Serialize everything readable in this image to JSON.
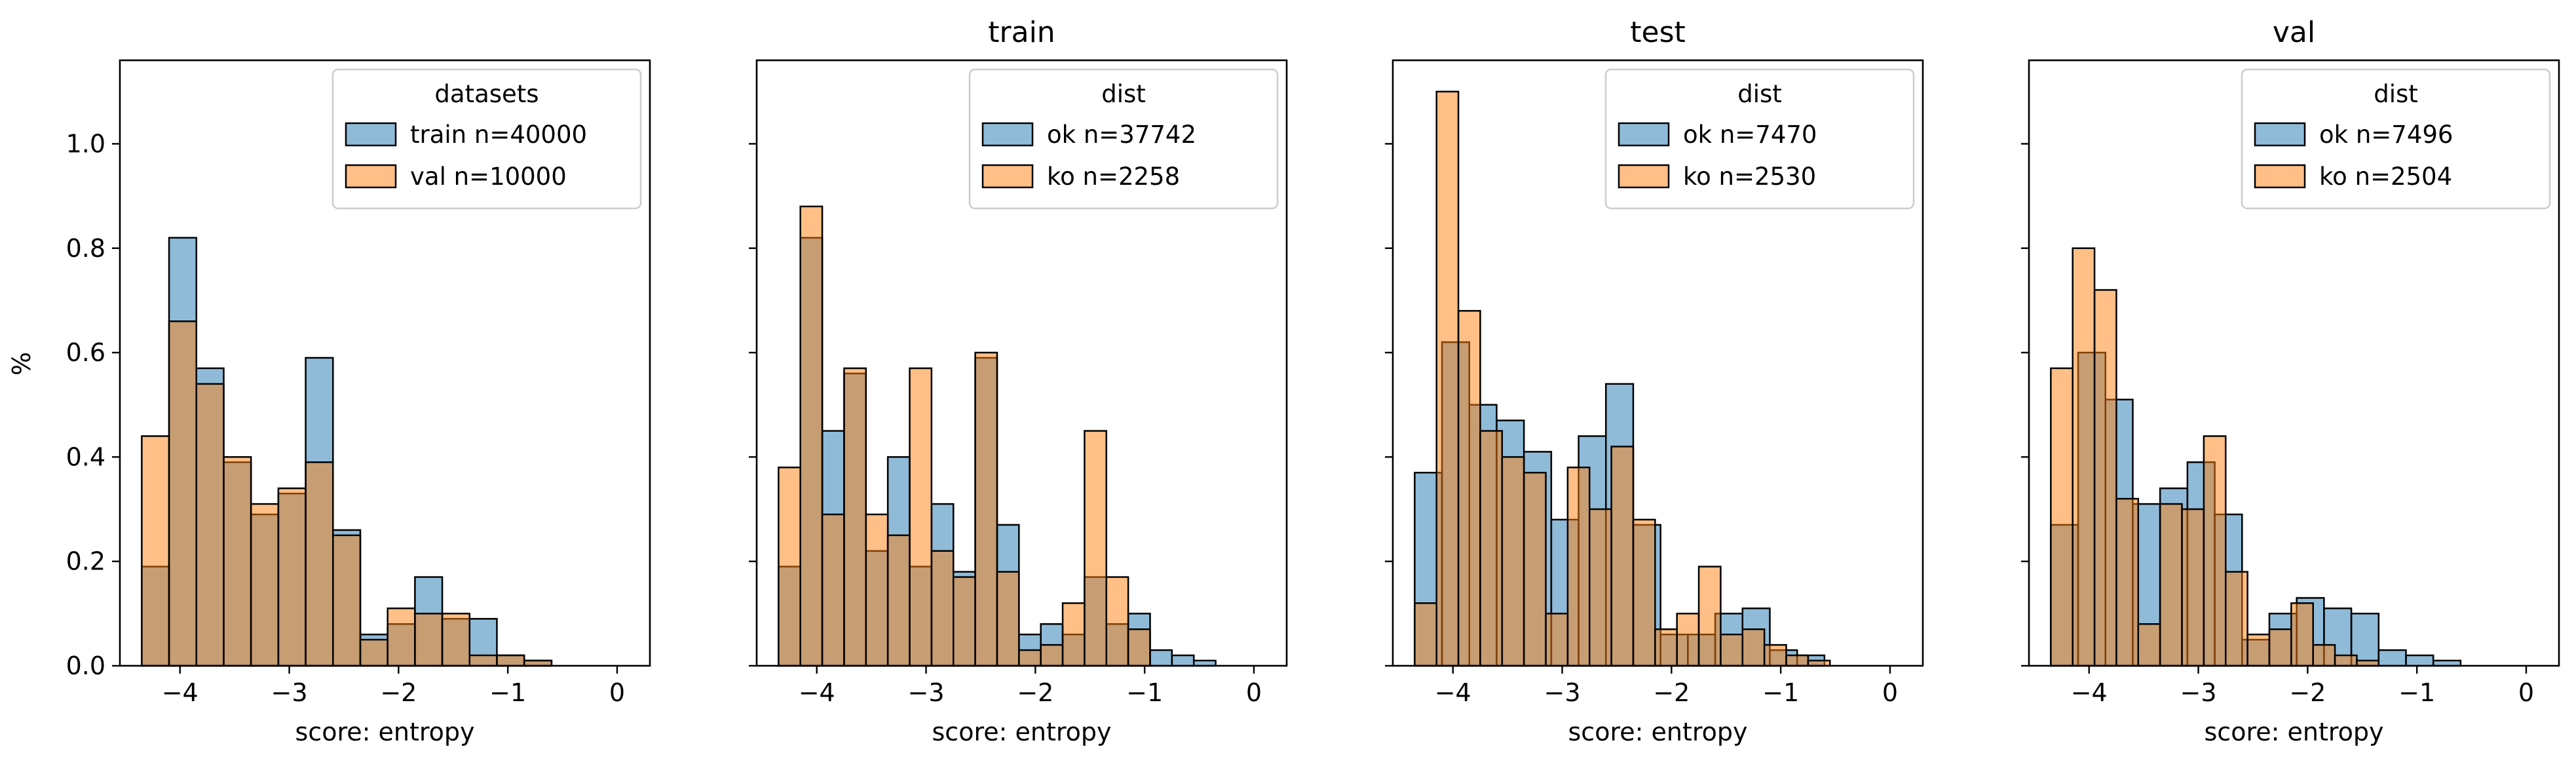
{
  "figure": {
    "ylabel": "%",
    "xlabel": "score: entropy"
  },
  "colors": {
    "blue": "#1f77b4",
    "orange": "#ff7f0e",
    "edge": "#000000",
    "legend_border": "#cccccc"
  },
  "chart_data": [
    {
      "type": "histogram",
      "title": "",
      "xlabel": "score: entropy",
      "ylabel": "%",
      "xlim": [
        -4.55,
        0.3
      ],
      "ylim": [
        0,
        1.16
      ],
      "xticks": [
        "−4",
        "−3",
        "−2",
        "−1",
        "0"
      ],
      "yticks": [
        "0.0",
        "0.2",
        "0.4",
        "0.6",
        "0.8",
        "1.0"
      ],
      "legend": {
        "title": "datasets",
        "position": "upper right"
      },
      "series": [
        {
          "name": "train n=40000",
          "color": "blue",
          "bin_start": -4.35,
          "bin_width": 0.25,
          "values": [
            0.19,
            0.82,
            0.57,
            0.39,
            0.29,
            0.33,
            0.59,
            0.26,
            0.06,
            0.08,
            0.17,
            0.09,
            0.09,
            0.02,
            0.01
          ]
        },
        {
          "name": "val n=10000",
          "color": "orange",
          "bin_start": -4.35,
          "bin_width": 0.25,
          "values": [
            0.44,
            0.66,
            0.54,
            0.4,
            0.31,
            0.34,
            0.39,
            0.25,
            0.05,
            0.11,
            0.1,
            0.1,
            0.02,
            0.02,
            0.01
          ]
        }
      ]
    },
    {
      "type": "histogram",
      "title": "train",
      "xlabel": "score: entropy",
      "xlim": [
        -4.55,
        0.3
      ],
      "ylim": [
        0,
        1.16
      ],
      "xticks": [
        "−4",
        "−3",
        "−2",
        "−1",
        "0"
      ],
      "legend": {
        "title": "dist",
        "position": "upper right"
      },
      "series": [
        {
          "name": "ok n=37742",
          "color": "blue",
          "bin_start": -4.35,
          "bin_width": 0.2,
          "values": [
            0.19,
            0.82,
            0.45,
            0.56,
            0.22,
            0.4,
            0.19,
            0.31,
            0.18,
            0.59,
            0.27,
            0.06,
            0.08,
            0.06,
            0.17,
            0.08,
            0.1,
            0.03,
            0.02,
            0.01
          ]
        },
        {
          "name": "ko n=2258",
          "color": "orange",
          "bin_start": -4.35,
          "bin_width": 0.2,
          "values": [
            0.38,
            0.88,
            0.29,
            0.57,
            0.29,
            0.25,
            0.57,
            0.22,
            0.17,
            0.6,
            0.18,
            0.03,
            0.04,
            0.12,
            0.45,
            0.17,
            0.07,
            0.0,
            0.0,
            0.0
          ]
        }
      ]
    },
    {
      "type": "histogram",
      "title": "test",
      "xlabel": "score: entropy",
      "xlim": [
        -4.55,
        0.3
      ],
      "ylim": [
        0,
        1.16
      ],
      "xticks": [
        "−4",
        "−3",
        "−2",
        "−1",
        "0"
      ],
      "legend": {
        "title": "dist",
        "position": "upper right"
      },
      "series": [
        {
          "name": "ok n=7470",
          "color": "blue",
          "bin_start": -4.35,
          "bin_width": 0.25,
          "values": [
            0.37,
            0.62,
            0.5,
            0.47,
            0.41,
            0.28,
            0.44,
            0.54,
            0.27,
            0.06,
            0.06,
            0.1,
            0.11,
            0.03,
            0.02
          ]
        },
        {
          "name": "ko n=2530",
          "color": "orange",
          "bin_start": -4.35,
          "bin_width": 0.2,
          "values": [
            0.12,
            1.1,
            0.68,
            0.45,
            0.4,
            0.37,
            0.1,
            0.38,
            0.3,
            0.42,
            0.28,
            0.07,
            0.1,
            0.19,
            0.06,
            0.07,
            0.04,
            0.02,
            0.01,
            0.0
          ]
        }
      ]
    },
    {
      "type": "histogram",
      "title": "val",
      "xlabel": "score: entropy",
      "xlim": [
        -4.55,
        0.3
      ],
      "ylim": [
        0,
        1.16
      ],
      "xticks": [
        "−4",
        "−3",
        "−2",
        "−1",
        "0"
      ],
      "legend": {
        "title": "dist",
        "position": "upper right"
      },
      "series": [
        {
          "name": "ok n=7496",
          "color": "blue",
          "bin_start": -4.35,
          "bin_width": 0.25,
          "values": [
            0.27,
            0.6,
            0.51,
            0.31,
            0.34,
            0.39,
            0.29,
            0.05,
            0.1,
            0.13,
            0.11,
            0.1,
            0.03,
            0.02,
            0.01
          ]
        },
        {
          "name": "ko n=2504",
          "color": "orange",
          "bin_start": -4.35,
          "bin_width": 0.2,
          "values": [
            0.57,
            0.8,
            0.72,
            0.32,
            0.08,
            0.31,
            0.3,
            0.44,
            0.18,
            0.06,
            0.07,
            0.12,
            0.04,
            0.02,
            0.01,
            0.0,
            0.0,
            0.0,
            0.0,
            0.0
          ]
        }
      ]
    }
  ]
}
